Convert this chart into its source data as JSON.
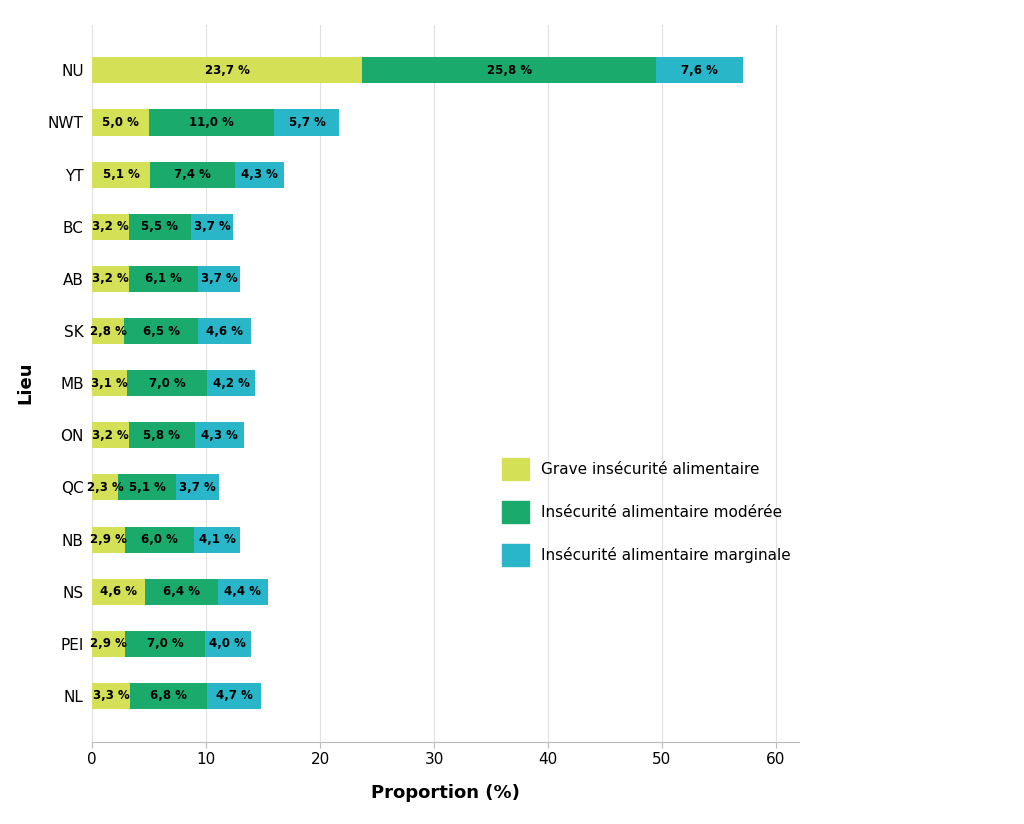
{
  "provinces": [
    "NU",
    "NWT",
    "YT",
    "BC",
    "AB",
    "SK",
    "MB",
    "ON",
    "QC",
    "NB",
    "NS",
    "PEI",
    "NL"
  ],
  "grave": [
    23.7,
    5.0,
    5.1,
    3.2,
    3.2,
    2.8,
    3.1,
    3.2,
    2.3,
    2.9,
    4.6,
    2.9,
    3.3
  ],
  "moderee": [
    25.8,
    11.0,
    7.4,
    5.5,
    6.1,
    6.5,
    7.0,
    5.8,
    5.1,
    6.0,
    6.4,
    7.0,
    6.8
  ],
  "marginale": [
    7.6,
    5.7,
    4.3,
    3.7,
    3.7,
    4.6,
    4.2,
    4.3,
    3.7,
    4.1,
    4.4,
    4.0,
    4.7
  ],
  "color_grave": "#d4e157",
  "color_moderee": "#1aaa6b",
  "color_marginale": "#29b6c8",
  "xlabel": "Proportion (%)",
  "ylabel": "Lieu",
  "legend_grave": "Grave insécurité alimentaire",
  "legend_moderee": "Insécurité alimentaire modérée",
  "legend_marginale": "Insécurité alimentaire marginale",
  "xlim": [
    0,
    62
  ],
  "xticks": [
    0,
    10,
    20,
    30,
    40,
    50,
    60
  ],
  "bar_height": 0.5,
  "background_color": "#ffffff",
  "label_fontsize": 8.5,
  "axis_label_fontsize": 13,
  "tick_fontsize": 11
}
